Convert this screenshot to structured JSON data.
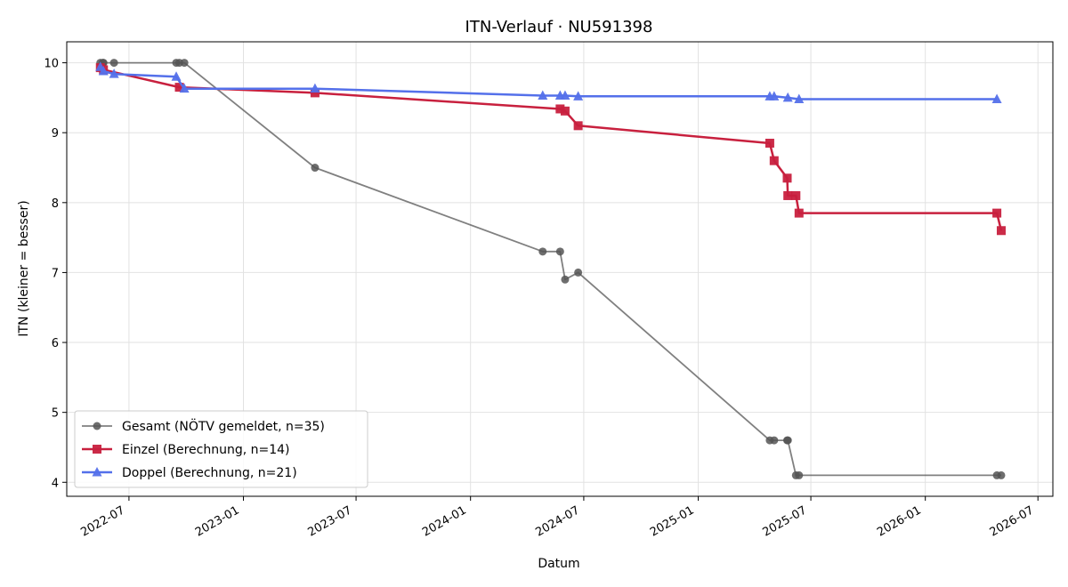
{
  "chart_data": {
    "type": "line",
    "title": "ITN-Verlauf · NU591398",
    "xlabel": "Datum",
    "ylabel": "ITN  (kleiner = besser)",
    "x_ticks": [
      "2022-07",
      "2023-01",
      "2023-07",
      "2024-01",
      "2024-07",
      "2025-01",
      "2025-07",
      "2026-01",
      "2026-07"
    ],
    "y_ticks": [
      4,
      5,
      6,
      7,
      8,
      9,
      10
    ],
    "xlim": [
      "2022-03-23",
      "2026-07-25"
    ],
    "ylim": [
      3.8,
      10.3
    ],
    "grid": true,
    "legend_position": "lower-left",
    "series": [
      {
        "name": "Gesamt (NÖTV gemeldet, n=35)",
        "color": "#555555",
        "marker": "circle",
        "points": [
          [
            "2022-05-16",
            10.0
          ],
          [
            "2022-05-20",
            10.0
          ],
          [
            "2022-05-21",
            10.0
          ],
          [
            "2022-06-07",
            10.0
          ],
          [
            "2022-09-15",
            10.0
          ],
          [
            "2022-09-20",
            10.0
          ],
          [
            "2022-09-28",
            10.0
          ],
          [
            "2023-04-26",
            8.5
          ],
          [
            "2024-04-26",
            7.3
          ],
          [
            "2024-05-24",
            7.3
          ],
          [
            "2024-06-01",
            6.9
          ],
          [
            "2024-06-22",
            7.0
          ],
          [
            "2025-04-26",
            4.6
          ],
          [
            "2025-05-03",
            4.6
          ],
          [
            "2025-05-24",
            4.6
          ],
          [
            "2025-05-25",
            4.6
          ],
          [
            "2025-06-07",
            4.1
          ],
          [
            "2025-06-12",
            4.1
          ],
          [
            "2026-04-26",
            4.1
          ],
          [
            "2026-05-03",
            4.1
          ]
        ]
      },
      {
        "name": "Einzel (Berechnung, n=14)",
        "color": "#c8203e",
        "marker": "square",
        "points": [
          [
            "2022-05-16",
            9.93
          ],
          [
            "2022-05-21",
            9.9
          ],
          [
            "2022-09-20",
            9.65
          ],
          [
            "2023-04-26",
            9.57
          ],
          [
            "2024-05-24",
            9.34
          ],
          [
            "2024-06-01",
            9.31
          ],
          [
            "2024-06-22",
            9.1
          ],
          [
            "2025-04-26",
            8.85
          ],
          [
            "2025-05-03",
            8.6
          ],
          [
            "2025-05-24",
            8.35
          ],
          [
            "2025-05-25",
            8.1
          ],
          [
            "2025-06-07",
            8.1
          ],
          [
            "2025-06-12",
            7.85
          ],
          [
            "2026-04-26",
            7.85
          ],
          [
            "2026-05-03",
            7.6
          ]
        ]
      },
      {
        "name": "Doppel (Berechnung, n=21)",
        "color": "#5470ea",
        "marker": "triangle",
        "points": [
          [
            "2022-05-16",
            9.94
          ],
          [
            "2022-05-21",
            9.88
          ],
          [
            "2022-06-07",
            9.84
          ],
          [
            "2022-09-15",
            9.8
          ],
          [
            "2022-09-28",
            9.63
          ],
          [
            "2023-04-26",
            9.63
          ],
          [
            "2024-04-26",
            9.53
          ],
          [
            "2024-05-24",
            9.53
          ],
          [
            "2024-06-01",
            9.53
          ],
          [
            "2024-06-22",
            9.52
          ],
          [
            "2025-04-26",
            9.52
          ],
          [
            "2025-05-03",
            9.52
          ],
          [
            "2025-05-25",
            9.5
          ],
          [
            "2025-06-12",
            9.48
          ],
          [
            "2026-04-26",
            9.48
          ]
        ]
      }
    ]
  }
}
